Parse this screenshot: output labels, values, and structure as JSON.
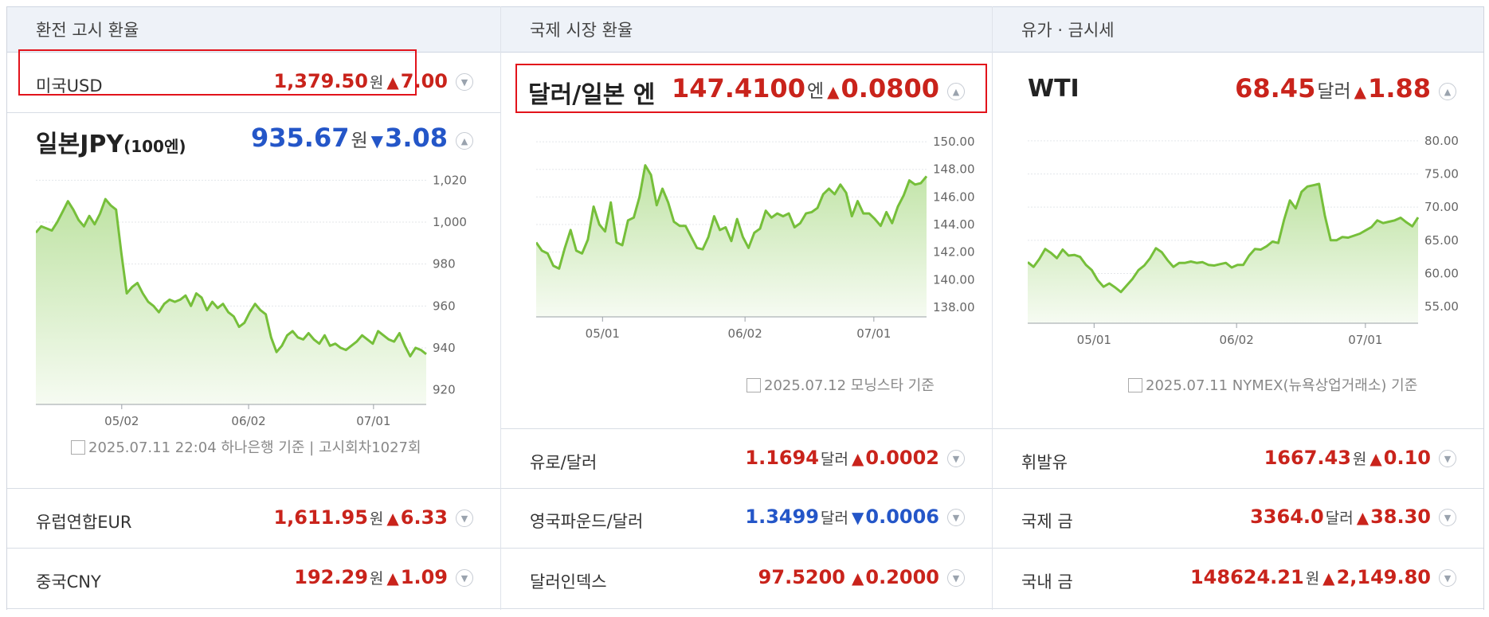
{
  "columns": [
    {
      "header": "환전 고시 환율",
      "top_row": {
        "name": "미국USD",
        "value": "1,379.50",
        "unit": "원",
        "dir": "up",
        "arrow": "▲",
        "change": "7.00"
      },
      "featured": {
        "name": "일본JPY",
        "name_suffix": "(100엔)",
        "value": "935.67",
        "unit": "원",
        "dir": "down",
        "arrow": "▼",
        "change": "3.08"
      },
      "source": "2025.07.11 22:04 하나은행 기준 | 고시회차1027회",
      "rows": [
        {
          "name": "유럽연합EUR",
          "value": "1,611.95",
          "unit": "원",
          "dir": "up",
          "arrow": "▲",
          "change": "6.33"
        },
        {
          "name": "중국CNY",
          "value": "192.29",
          "unit": "원",
          "dir": "up",
          "arrow": "▲",
          "change": "1.09"
        }
      ]
    },
    {
      "header": "국제 시장 환율",
      "featured": {
        "name": "달러/일본 엔",
        "value": "147.4100",
        "unit": "엔",
        "dir": "up",
        "arrow": "▲",
        "change": "0.0800"
      },
      "source": "2025.07.12 모닝스타 기준",
      "rows": [
        {
          "name": "유로/달러",
          "value": "1.1694",
          "unit": "달러",
          "dir": "up",
          "arrow": "▲",
          "change": "0.0002"
        },
        {
          "name": "영국파운드/달러",
          "value": "1.3499",
          "unit": "달러",
          "dir": "down",
          "arrow": "▼",
          "change": "0.0006"
        },
        {
          "name": "달러인덱스",
          "value": "97.5200",
          "unit": "",
          "dir": "up",
          "arrow": "▲",
          "change": "0.2000"
        }
      ]
    },
    {
      "header": "유가 · 금시세",
      "featured": {
        "name": "WTI",
        "value": "68.45",
        "unit": "달러",
        "dir": "up",
        "arrow": "▲",
        "change": "1.88"
      },
      "source": "2025.07.11 NYMEX(뉴욕상업거래소) 기준",
      "rows": [
        {
          "name": "휘발유",
          "value": "1667.43",
          "unit": "원",
          "dir": "up",
          "arrow": "▲",
          "change": "0.10"
        },
        {
          "name": "국제 금",
          "value": "3364.0",
          "unit": "달러",
          "dir": "up",
          "arrow": "▲",
          "change": "38.30"
        },
        {
          "name": "국내 금",
          "value": "148624.21",
          "unit": "원",
          "dir": "up",
          "arrow": "▲",
          "change": "2,149.80"
        }
      ]
    }
  ],
  "chart_data": [
    {
      "type": "area",
      "x_ticks": [
        "05/02",
        "06/02",
        "07/01"
      ],
      "y_ticks": [
        "1,020",
        "1,000",
        "980",
        "960",
        "940",
        "920"
      ],
      "ylim": [
        913,
        1027
      ],
      "values": [
        995,
        998,
        997,
        996,
        1000,
        1005,
        1010,
        1006,
        1001,
        998,
        1003,
        999,
        1004,
        1011,
        1008,
        1006,
        985,
        966,
        969,
        971,
        966,
        962,
        960,
        957,
        961,
        963,
        962,
        963,
        965,
        960,
        966,
        964,
        958,
        962,
        959,
        961,
        957,
        955,
        950,
        952,
        957,
        961,
        958,
        956,
        945,
        938,
        941,
        946,
        948,
        945,
        944,
        947,
        944,
        942,
        946,
        941,
        942,
        940,
        939,
        941,
        943,
        946,
        944,
        942,
        948,
        946,
        944,
        943,
        947,
        941,
        936,
        940,
        939,
        937
      ]
    },
    {
      "type": "area",
      "x_ticks": [
        "05/01",
        "06/02",
        "07/01"
      ],
      "y_ticks": [
        "150.00",
        "148.00",
        "146.00",
        "144.00",
        "142.00",
        "140.00",
        "138.00"
      ],
      "ylim": [
        137.3,
        150.7
      ],
      "values": [
        142.7,
        142.1,
        141.9,
        141.0,
        140.8,
        142.3,
        143.6,
        142.1,
        141.9,
        142.9,
        145.3,
        144.0,
        143.5,
        145.6,
        142.7,
        142.5,
        144.3,
        144.5,
        146.0,
        148.3,
        147.6,
        145.4,
        146.6,
        145.6,
        144.2,
        143.9,
        143.9,
        143.1,
        142.3,
        142.2,
        143.1,
        144.6,
        143.6,
        143.8,
        142.8,
        144.4,
        143.1,
        142.3,
        143.4,
        143.7,
        145.0,
        144.5,
        144.8,
        144.6,
        144.8,
        143.8,
        144.1,
        144.8,
        144.9,
        145.2,
        146.2,
        146.6,
        146.2,
        146.9,
        146.3,
        144.6,
        145.7,
        144.8,
        144.8,
        144.4,
        143.9,
        144.9,
        144.1,
        145.3,
        146.1,
        147.2,
        146.9,
        147.0,
        147.5
      ]
    },
    {
      "type": "area",
      "x_ticks": [
        "05/01",
        "06/02",
        "07/01"
      ],
      "y_ticks": [
        "80.00",
        "75.00",
        "70.00",
        "65.00",
        "60.00",
        "55.00"
      ],
      "ylim": [
        52.5,
        81.3
      ],
      "values": [
        61.7,
        61.0,
        62.2,
        63.7,
        63.1,
        62.3,
        63.6,
        62.7,
        62.8,
        62.5,
        61.3,
        60.5,
        59.0,
        58.0,
        58.5,
        57.9,
        57.2,
        58.2,
        59.2,
        60.5,
        61.2,
        62.3,
        63.8,
        63.2,
        62.0,
        61.0,
        61.6,
        61.6,
        61.8,
        61.6,
        61.7,
        61.3,
        61.2,
        61.4,
        61.6,
        60.9,
        61.3,
        61.3,
        62.7,
        63.7,
        63.6,
        64.1,
        64.8,
        64.6,
        68.1,
        71.0,
        69.8,
        72.3,
        73.1,
        73.3,
        73.5,
        68.7,
        65.0,
        65.0,
        65.5,
        65.4,
        65.7,
        66.0,
        66.5,
        67.0,
        68.0,
        67.6,
        67.8,
        68.0,
        68.4,
        67.7,
        67.1,
        68.45
      ]
    }
  ]
}
